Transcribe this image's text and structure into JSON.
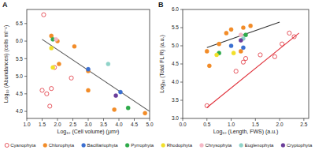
{
  "chart_data": [
    {
      "type": "scatter",
      "title": "A",
      "x_label": "Log₁₀ (Cell volume) (μm³)",
      "y_label": "Log₁₀ (Abundances) (cells ml⁻¹)",
      "xlim": [
        1.0,
        5.0
      ],
      "xticks": [
        {
          "value": 1,
          "label": "1.0"
        },
        1.5,
        {
          "value": 2,
          "label": "2.0"
        },
        2.5,
        {
          "value": 3,
          "label": "3.0"
        },
        3.5,
        {
          "value": 4,
          "label": "4.0"
        },
        4.5,
        {
          "value": 5,
          "label": "5.0"
        }
      ],
      "ylim": [
        3.8,
        6.9
      ],
      "yticks": [
        {
          "value": 4,
          "label": "4.0"
        },
        4.5,
        {
          "value": 5,
          "label": "5.0"
        },
        5.5,
        {
          "value": 6,
          "label": "6.0"
        },
        6.5
      ],
      "legend": "bottom",
      "series": [
        {
          "name": "Cyanophyta",
          "color": "#e0303a",
          "marker": "open-circle",
          "x": [
            1.55,
            1.5,
            1.65,
            1.75,
            1.8,
            1.9,
            2.45
          ],
          "values": [
            6.75,
            4.6,
            4.5,
            4.15,
            4.65,
            5.25,
            4.95
          ]
        },
        {
          "name": "Chlorophyta",
          "color": "#f28c28",
          "marker": "circle",
          "x": [
            1.8,
            2.0,
            2.05,
            2.55,
            3.0,
            3.0,
            3.85,
            4.85
          ],
          "values": [
            6.15,
            6.0,
            5.35,
            5.85,
            5.15,
            4.6,
            4.05,
            3.95
          ]
        },
        {
          "name": "Bacillariophyta",
          "color": "#3b6fd1",
          "marker": "circle",
          "x": [
            3.0,
            4.05
          ],
          "values": [
            5.2,
            4.55
          ]
        },
        {
          "name": "Pyrrophyta",
          "color": "#2eaa4a",
          "marker": "circle",
          "x": [
            1.85,
            4.3
          ],
          "values": [
            6.05,
            4.1
          ]
        },
        {
          "name": "Rhodophyta",
          "color": "#f2e02a",
          "marker": "circle",
          "x": [
            1.8,
            1.85
          ],
          "values": [
            5.8,
            5.25
          ]
        },
        {
          "name": "Chrysophyta",
          "color": "#f5b8c6",
          "marker": "circle",
          "x": [
            1.95
          ],
          "values": [
            6.05
          ]
        },
        {
          "name": "Euglenophyta",
          "color": "#8fd3c8",
          "marker": "circle",
          "x": [
            3.65
          ],
          "values": [
            5.35
          ]
        },
        {
          "name": "Cryptophyta",
          "color": "#6a3d9a",
          "marker": "circle",
          "x": [
            3.9
          ],
          "values": [
            4.45
          ]
        },
        {
          "type": "line",
          "color": "#555555",
          "line_style": "solid",
          "x": [
            1.5,
            5.0
          ],
          "values": [
            6.05,
            4.0
          ]
        }
      ]
    },
    {
      "type": "scatter",
      "title": "B",
      "x_label": "Log₁₀ (Length, FWS) (a.u.)",
      "y_label": "Log₁₀ (Total FL R) (a.u.)",
      "xlim": [
        0.0,
        2.6
      ],
      "xticks": [
        {
          "value": 0,
          "label": "0.0"
        },
        0.5,
        {
          "value": 1,
          "label": "1.0"
        },
        1.5,
        {
          "value": 2,
          "label": "2.0"
        },
        2.5
      ],
      "ylim": [
        3.0,
        6.0
      ],
      "yticks": [
        {
          "value": 3,
          "label": "3.0"
        },
        3.5,
        {
          "value": 4,
          "label": "4.0"
        },
        4.5,
        {
          "value": 5,
          "label": "5.0"
        },
        5.5,
        {
          "value": 6,
          "label": "6.0"
        }
      ],
      "series": [
        {
          "color": "#e0303a",
          "marker": "open-circle",
          "x": [
            0.5,
            1.1,
            1.25,
            1.3,
            1.6,
            1.9,
            2.05,
            2.2,
            2.3
          ],
          "values": [
            3.35,
            4.3,
            4.55,
            4.65,
            4.75,
            4.7,
            5.05,
            5.35,
            5.25
          ]
        },
        {
          "color": "#f28c28",
          "marker": "circle",
          "x": [
            0.5,
            0.55,
            0.75,
            0.9,
            1.0,
            1.2,
            1.25,
            1.4
          ],
          "values": [
            4.85,
            4.45,
            5.05,
            5.35,
            5.45,
            4.85,
            5.5,
            5.55
          ]
        },
        {
          "color": "#3b6fd1",
          "marker": "circle",
          "x": [
            1.0,
            1.25
          ],
          "values": [
            5.0,
            4.95
          ]
        },
        {
          "color": "#2eaa4a",
          "marker": "circle",
          "x": [
            0.75,
            1.3
          ],
          "values": [
            4.8,
            5.3
          ]
        },
        {
          "color": "#f2e02a",
          "marker": "circle",
          "x": [
            0.7,
            1.05
          ],
          "values": [
            4.75,
            4.8
          ]
        },
        {
          "color": "#f5b8c6",
          "marker": "circle",
          "x": [
            1.2
          ],
          "values": [
            5.3
          ]
        },
        {
          "color": "#8fd3c8",
          "marker": "circle",
          "x": [
            1.25
          ],
          "values": [
            5.2
          ]
        },
        {
          "color": "#6a3d9a",
          "marker": "circle",
          "x": [
            1.2
          ],
          "values": [
            5.15
          ]
        },
        {
          "type": "line",
          "color": "#333333",
          "line_style": "solid",
          "x": [
            0.5,
            2.0
          ],
          "values": [
            4.95,
            5.65
          ]
        },
        {
          "type": "line",
          "color": "#e0303a",
          "line_style": "solid",
          "x": [
            0.5,
            2.4
          ],
          "values": [
            3.3,
            5.35
          ]
        }
      ]
    }
  ]
}
